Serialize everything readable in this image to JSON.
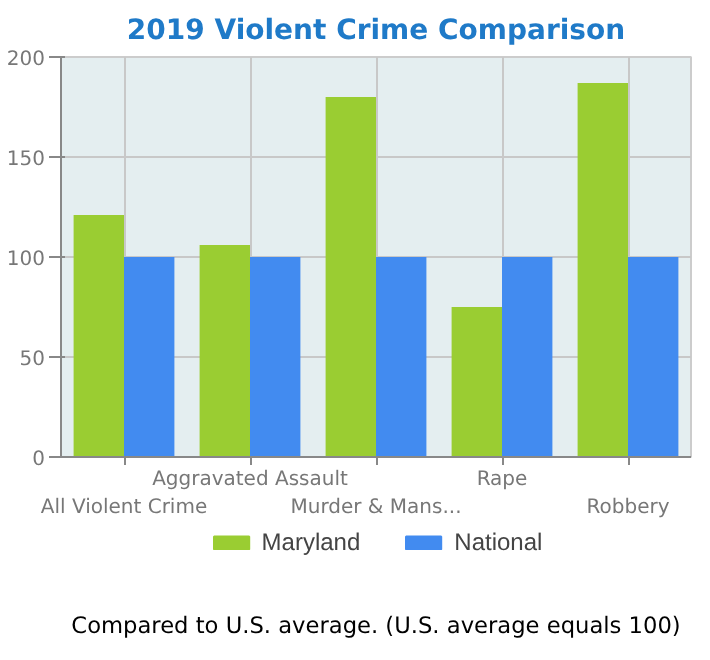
{
  "chart_data": {
    "type": "bar",
    "title": "2019 Violent Crime Comparison",
    "categories": [
      "All Violent Crime",
      "Aggravated Assault",
      "Murder & Mans...",
      "Rape",
      "Robbery"
    ],
    "series": [
      {
        "name": "Maryland",
        "color": "#9acd32",
        "values": [
          121,
          106,
          180,
          75,
          187
        ]
      },
      {
        "name": "National",
        "color": "#428bf0",
        "values": [
          100,
          100,
          100,
          100,
          100
        ]
      }
    ],
    "ylim": [
      0,
      200
    ],
    "yticks": [
      0,
      50,
      100,
      150,
      200
    ],
    "grid": true,
    "legend": "bottom",
    "annotations": [
      "Compared to U.S. average. (U.S. average equals 100)"
    ]
  }
}
